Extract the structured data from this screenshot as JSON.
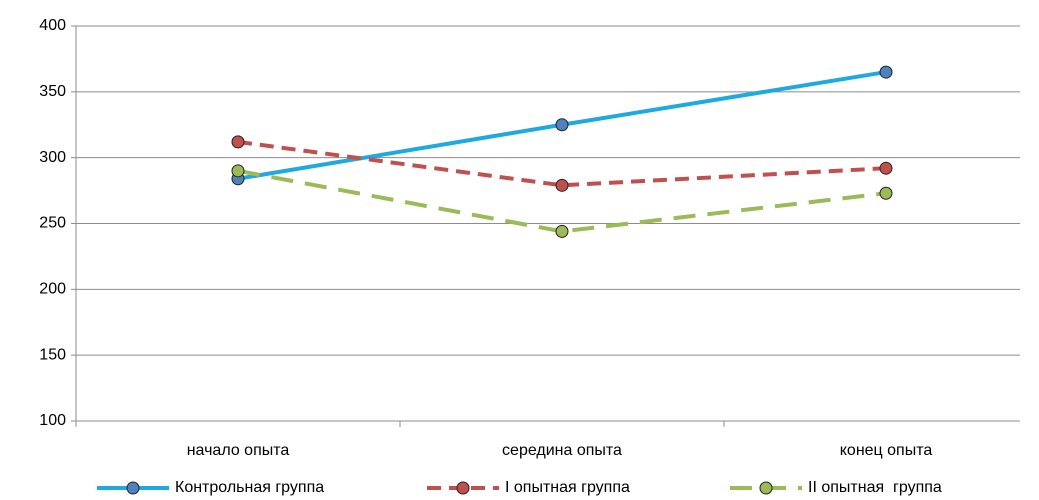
{
  "chart_data": {
    "type": "line",
    "categories": [
      "начало опыта",
      "середина опыта",
      "конец опыта"
    ],
    "series": [
      {
        "name": "Контрольная группа",
        "color": "#1ea9e1",
        "marker_color": "#4f81bd",
        "dash": "solid",
        "values": [
          284,
          325,
          365
        ]
      },
      {
        "name": "I опытная группа",
        "color": "#c0504d",
        "marker_color": "#c0504d",
        "dash": "dashed",
        "values": [
          312,
          279,
          292
        ]
      },
      {
        "name": "II опытная  группа",
        "color": "#9bbb59",
        "marker_color": "#9bbb59",
        "dash": "long-dashed",
        "values": [
          290,
          244,
          273
        ]
      }
    ],
    "ylim": [
      100,
      400
    ],
    "yticks": [
      100,
      150,
      200,
      250,
      300,
      350,
      400
    ],
    "grid": true,
    "legend": "bottom"
  }
}
